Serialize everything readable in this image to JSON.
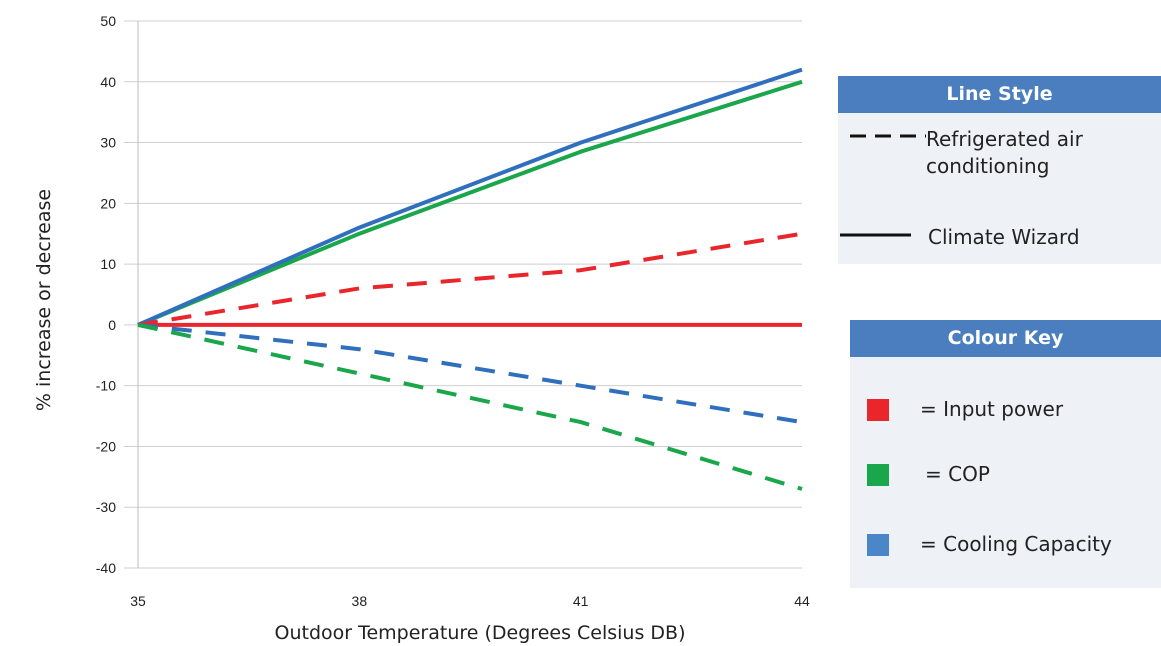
{
  "chart_data": {
    "type": "line",
    "xlabel": "Outdoor Temperature (Degrees Celsius DB)",
    "ylabel": "% increase or decrease",
    "x_ticks": [
      35,
      38,
      41,
      44
    ],
    "y_ticks": [
      -40,
      -30,
      -20,
      -10,
      0,
      10,
      20,
      30,
      40,
      50
    ],
    "xlim": [
      35,
      44
    ],
    "ylim": [
      -40,
      50
    ],
    "grid": "horizontal",
    "series": [
      {
        "name": "Input power",
        "system": "Climate Wizard",
        "color": "#e8262b",
        "style": "solid",
        "x": [
          35,
          38,
          41,
          44
        ],
        "y": [
          0,
          0,
          0,
          0
        ]
      },
      {
        "name": "COP",
        "system": "Climate Wizard",
        "color": "#1aa64a",
        "style": "solid",
        "x": [
          35,
          38,
          41,
          44
        ],
        "y": [
          0,
          15,
          28.5,
          40
        ]
      },
      {
        "name": "Cooling Capacity",
        "system": "Climate Wizard",
        "color": "#2f6fbd",
        "style": "solid",
        "x": [
          35,
          38,
          41,
          44
        ],
        "y": [
          0,
          16,
          30,
          42
        ]
      },
      {
        "name": "Input power",
        "system": "Refrigerated air conditioning",
        "color": "#e8262b",
        "style": "dashed",
        "x": [
          35,
          38,
          41,
          44
        ],
        "y": [
          0,
          6,
          9,
          15
        ]
      },
      {
        "name": "Cooling Capacity",
        "system": "Refrigerated air conditioning",
        "color": "#2f6fbd",
        "style": "dashed",
        "x": [
          35,
          38,
          41,
          44
        ],
        "y": [
          0,
          -4,
          -10,
          -16
        ]
      },
      {
        "name": "COP",
        "system": "Refrigerated air conditioning",
        "color": "#1aa64a",
        "style": "dashed",
        "x": [
          35,
          38,
          41,
          44
        ],
        "y": [
          0,
          -8,
          -16,
          -27
        ]
      }
    ]
  },
  "legend": {
    "header_color": "#4a7ebe",
    "line_style": {
      "title": "Line Style",
      "items": [
        {
          "label": "Refrigerated air conditioning",
          "style": "dashed"
        },
        {
          "label": "Climate Wizard",
          "style": "solid"
        }
      ]
    },
    "colour_key": {
      "title": "Colour Key",
      "items": [
        {
          "label": "= Input power",
          "color": "#e8262b"
        },
        {
          "label": "= COP",
          "color": "#1aa64a"
        },
        {
          "label": "= Cooling Capacity",
          "color": "#4a86c8"
        }
      ]
    }
  }
}
